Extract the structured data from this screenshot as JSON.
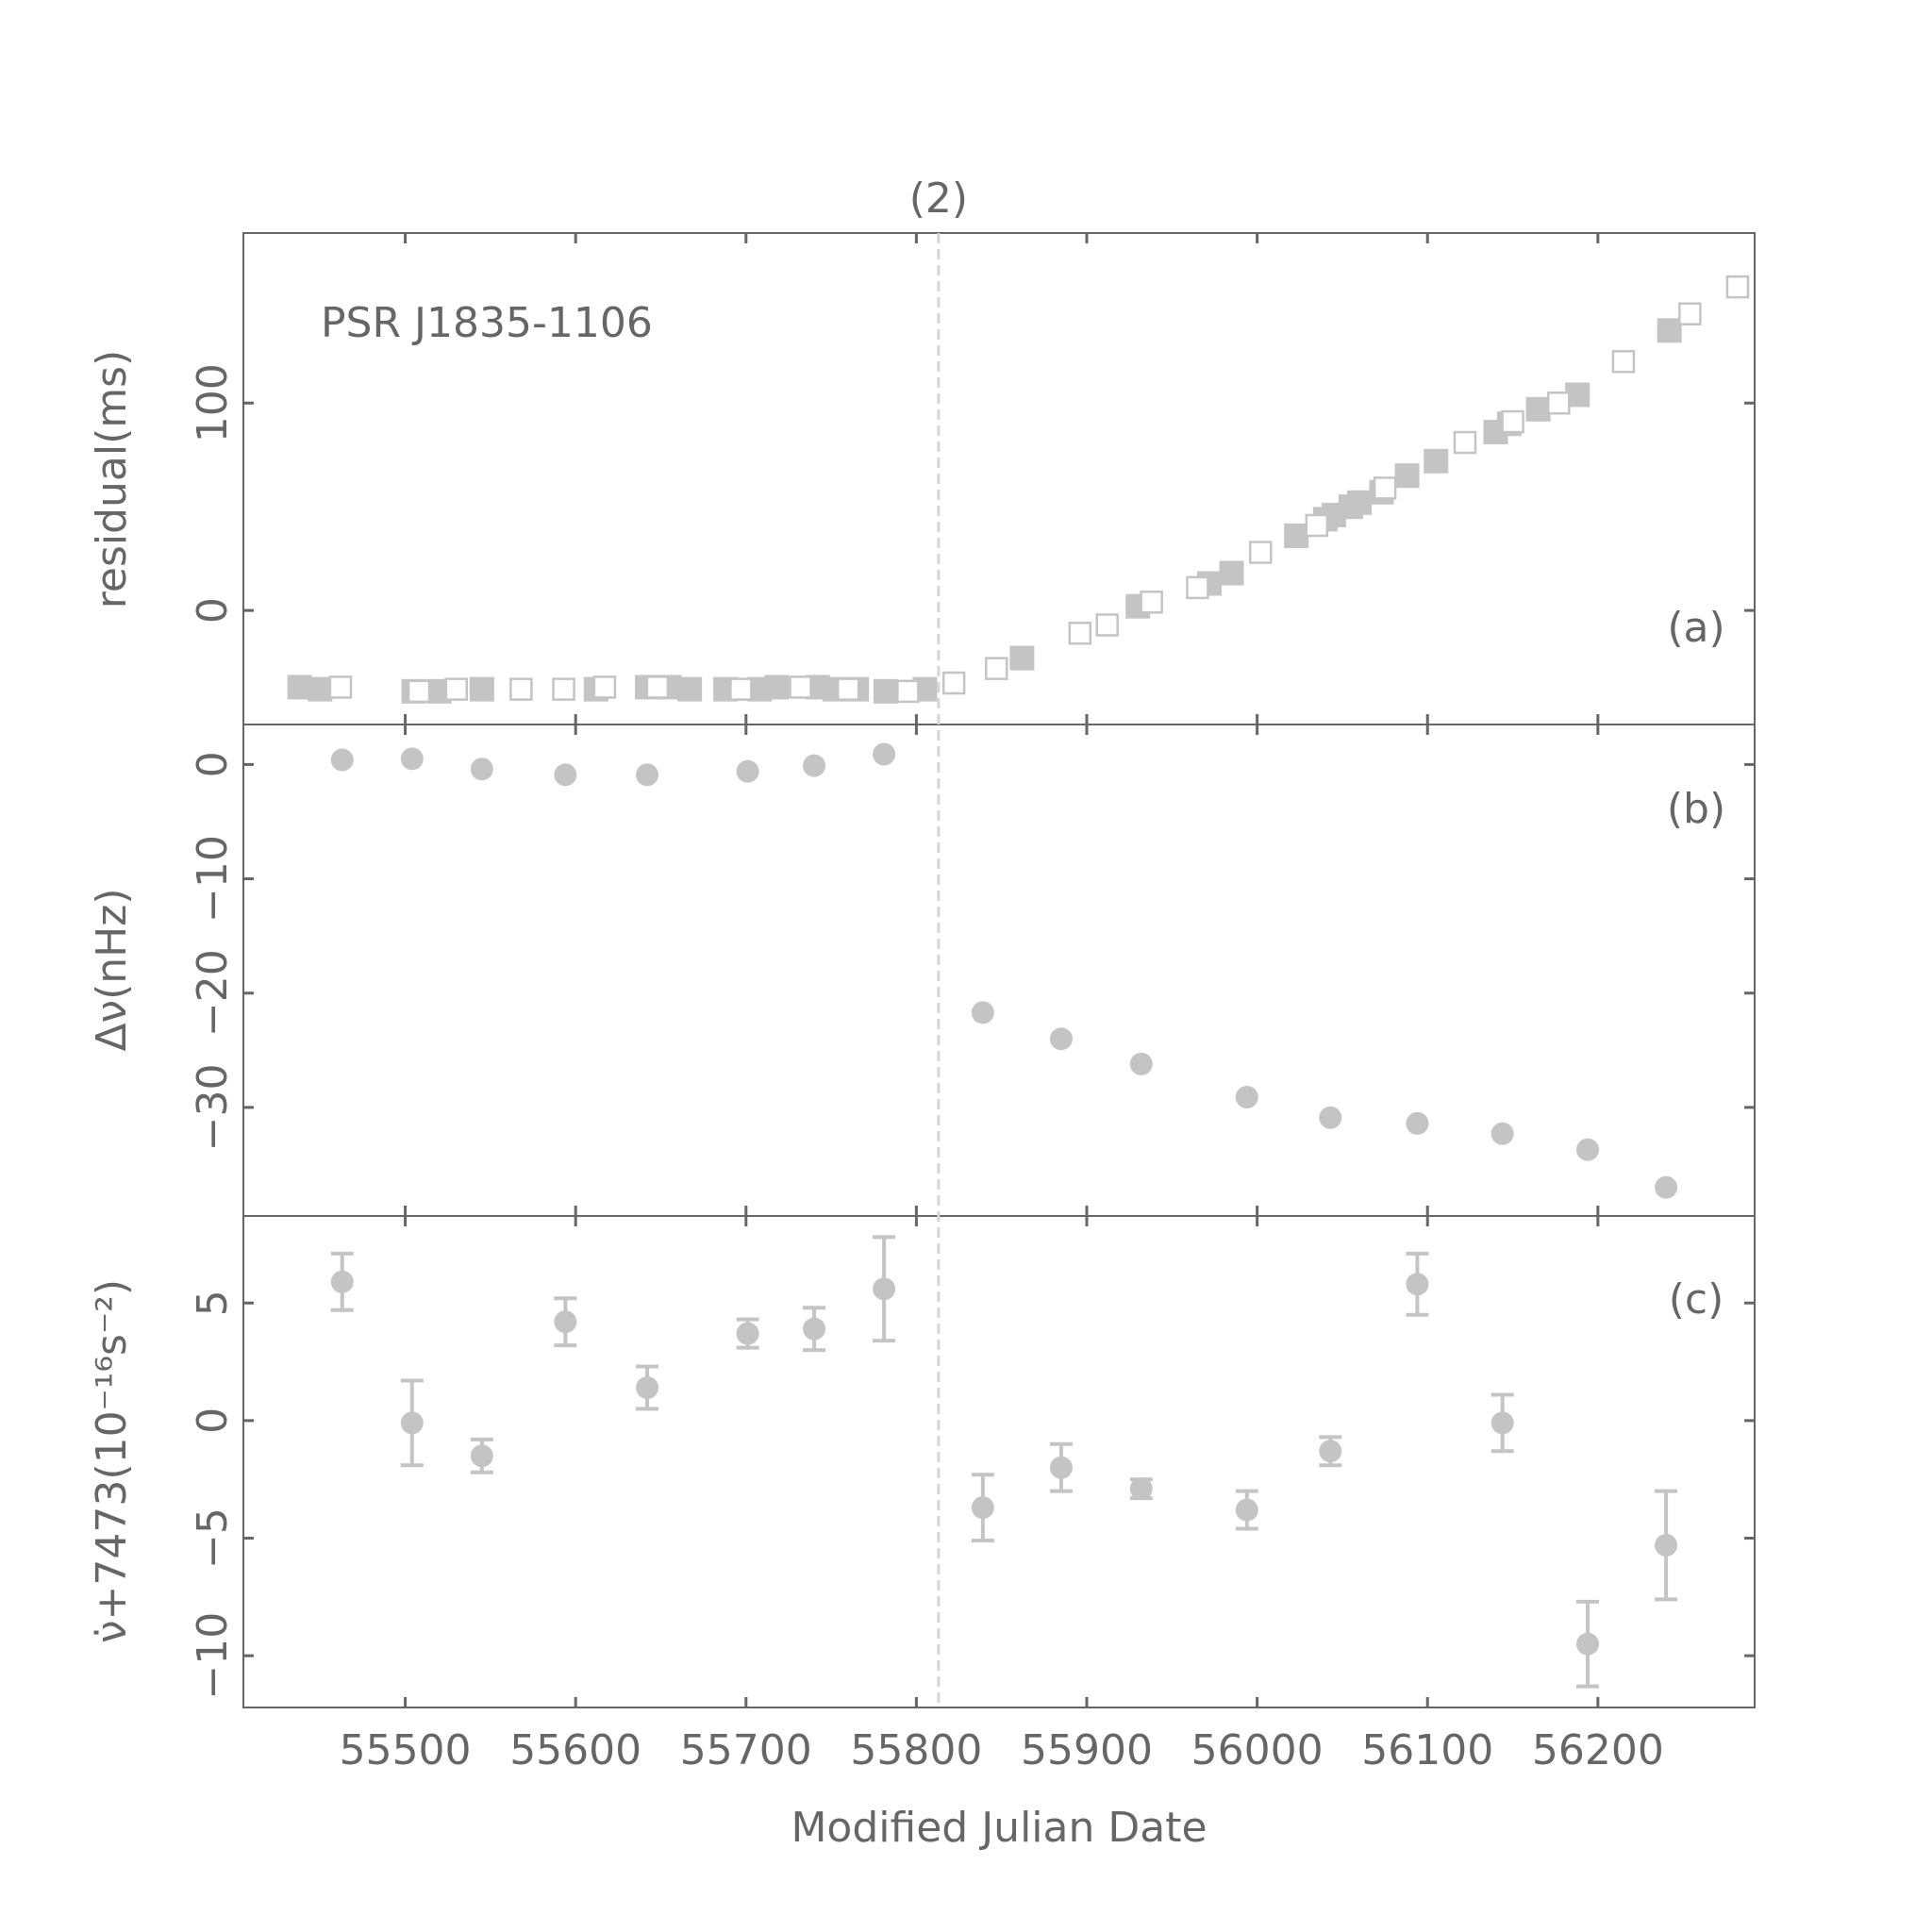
{
  "figure": {
    "marker_color": "#c4c4c4",
    "axis_color": "#666666",
    "glitch_line_color": "#d6d6d6",
    "xlabel": "Modified Julian Date",
    "xticks": [
      55500,
      55600,
      55700,
      55800,
      55900,
      56000,
      56100,
      56200
    ],
    "xlim": [
      55405,
      56292
    ],
    "glitch": {
      "mjd": 55813,
      "label": "(2)"
    }
  },
  "chart_data": [
    {
      "type": "scatter",
      "panel": "(a)",
      "annotation": "PSR J1835-1106",
      "ylabel": "residual(ms)",
      "ylim": [
        -55,
        182
      ],
      "yticks": [
        0,
        100
      ],
      "series": [
        {
          "marker": "filled-square",
          "points": [
            [
              55438,
              -37
            ],
            [
              55450,
              -38
            ],
            [
              55505,
              -39
            ],
            [
              55520,
              -39
            ],
            [
              55545,
              -38
            ],
            [
              55612,
              -38
            ],
            [
              55642,
              -37
            ],
            [
              55655,
              -37
            ],
            [
              55667,
              -38
            ],
            [
              55688,
              -38
            ],
            [
              55708,
              -38
            ],
            [
              55718,
              -37
            ],
            [
              55742,
              -37
            ],
            [
              55752,
              -38
            ],
            [
              55765,
              -38
            ],
            [
              55782,
              -39
            ],
            [
              55805,
              -38
            ],
            [
              55862,
              -23
            ],
            [
              55930,
              2
            ],
            [
              55972,
              13
            ],
            [
              55985,
              18
            ],
            [
              56023,
              36
            ],
            [
              56040,
              44
            ],
            [
              56045,
              46
            ],
            [
              56055,
              50
            ],
            [
              56060,
              52
            ],
            [
              56073,
              57
            ],
            [
              56088,
              65
            ],
            [
              56105,
              72
            ],
            [
              56140,
              86
            ],
            [
              56148,
              90
            ],
            [
              56165,
              97
            ],
            [
              56188,
              104
            ],
            [
              56242,
              135
            ]
          ]
        },
        {
          "marker": "open-square",
          "points": [
            [
              55462,
              -37
            ],
            [
              55508,
              -39
            ],
            [
              55530,
              -38
            ],
            [
              55568,
              -38
            ],
            [
              55593,
              -38
            ],
            [
              55617,
              -37
            ],
            [
              55648,
              -37
            ],
            [
              55697,
              -38
            ],
            [
              55732,
              -37
            ],
            [
              55760,
              -38
            ],
            [
              55795,
              -39
            ],
            [
              55822,
              -35
            ],
            [
              55847,
              -28
            ],
            [
              55896,
              -11
            ],
            [
              55912,
              -7
            ],
            [
              55938,
              4
            ],
            [
              55965,
              11
            ],
            [
              56002,
              28
            ],
            [
              56035,
              41
            ],
            [
              56075,
              59
            ],
            [
              56122,
              81
            ],
            [
              56150,
              91
            ],
            [
              56177,
              100
            ],
            [
              56215,
              120
            ],
            [
              56254,
              143
            ],
            [
              56282,
              156
            ]
          ]
        }
      ]
    },
    {
      "type": "scatter",
      "panel": "(b)",
      "ylabel": "Δν(nHz)",
      "ylim": [
        -39.5,
        3.5
      ],
      "yticks": [
        0,
        -10,
        -20,
        -30
      ],
      "series": [
        {
          "marker": "filled-circle",
          "points": [
            [
              55463,
              0.4
            ],
            [
              55504,
              0.5
            ],
            [
              55545,
              -0.4
            ],
            [
              55594,
              -0.9
            ],
            [
              55642,
              -0.9
            ],
            [
              55701,
              -0.6
            ],
            [
              55740,
              -0.1
            ],
            [
              55781,
              0.9
            ],
            [
              55839,
              -21.7
            ],
            [
              55885,
              -24.0
            ],
            [
              55932,
              -26.2
            ],
            [
              55994,
              -29.1
            ],
            [
              56043,
              -30.9
            ],
            [
              56094,
              -31.4
            ],
            [
              56144,
              -32.3
            ],
            [
              56194,
              -33.7
            ],
            [
              56240,
              -37.0
            ]
          ]
        }
      ]
    },
    {
      "type": "scatter",
      "panel": "(c)",
      "ylabel": "ν̇+7473(10⁻¹⁶s⁻²)",
      "ylim": [
        -12.2,
        8.7
      ],
      "yticks": [
        5,
        0,
        -5,
        -10
      ],
      "series": [
        {
          "marker": "filled-circle-errorbar",
          "points": [
            [
              55463,
              5.9,
              1.2
            ],
            [
              55504,
              -0.1,
              1.8
            ],
            [
              55545,
              -1.5,
              0.7
            ],
            [
              55594,
              4.2,
              1.0
            ],
            [
              55642,
              1.4,
              0.9
            ],
            [
              55701,
              3.7,
              0.6
            ],
            [
              55740,
              3.9,
              0.9
            ],
            [
              55781,
              5.6,
              2.2
            ],
            [
              55839,
              -3.7,
              1.4
            ],
            [
              55885,
              -2.0,
              1.0
            ],
            [
              55932,
              -2.9,
              0.4
            ],
            [
              55994,
              -3.8,
              0.8
            ],
            [
              56043,
              -1.3,
              0.6
            ],
            [
              56094,
              5.8,
              1.3
            ],
            [
              56144,
              -0.1,
              1.2
            ],
            [
              56194,
              -9.5,
              1.8
            ],
            [
              56240,
              -5.3,
              2.3
            ]
          ]
        }
      ]
    }
  ]
}
